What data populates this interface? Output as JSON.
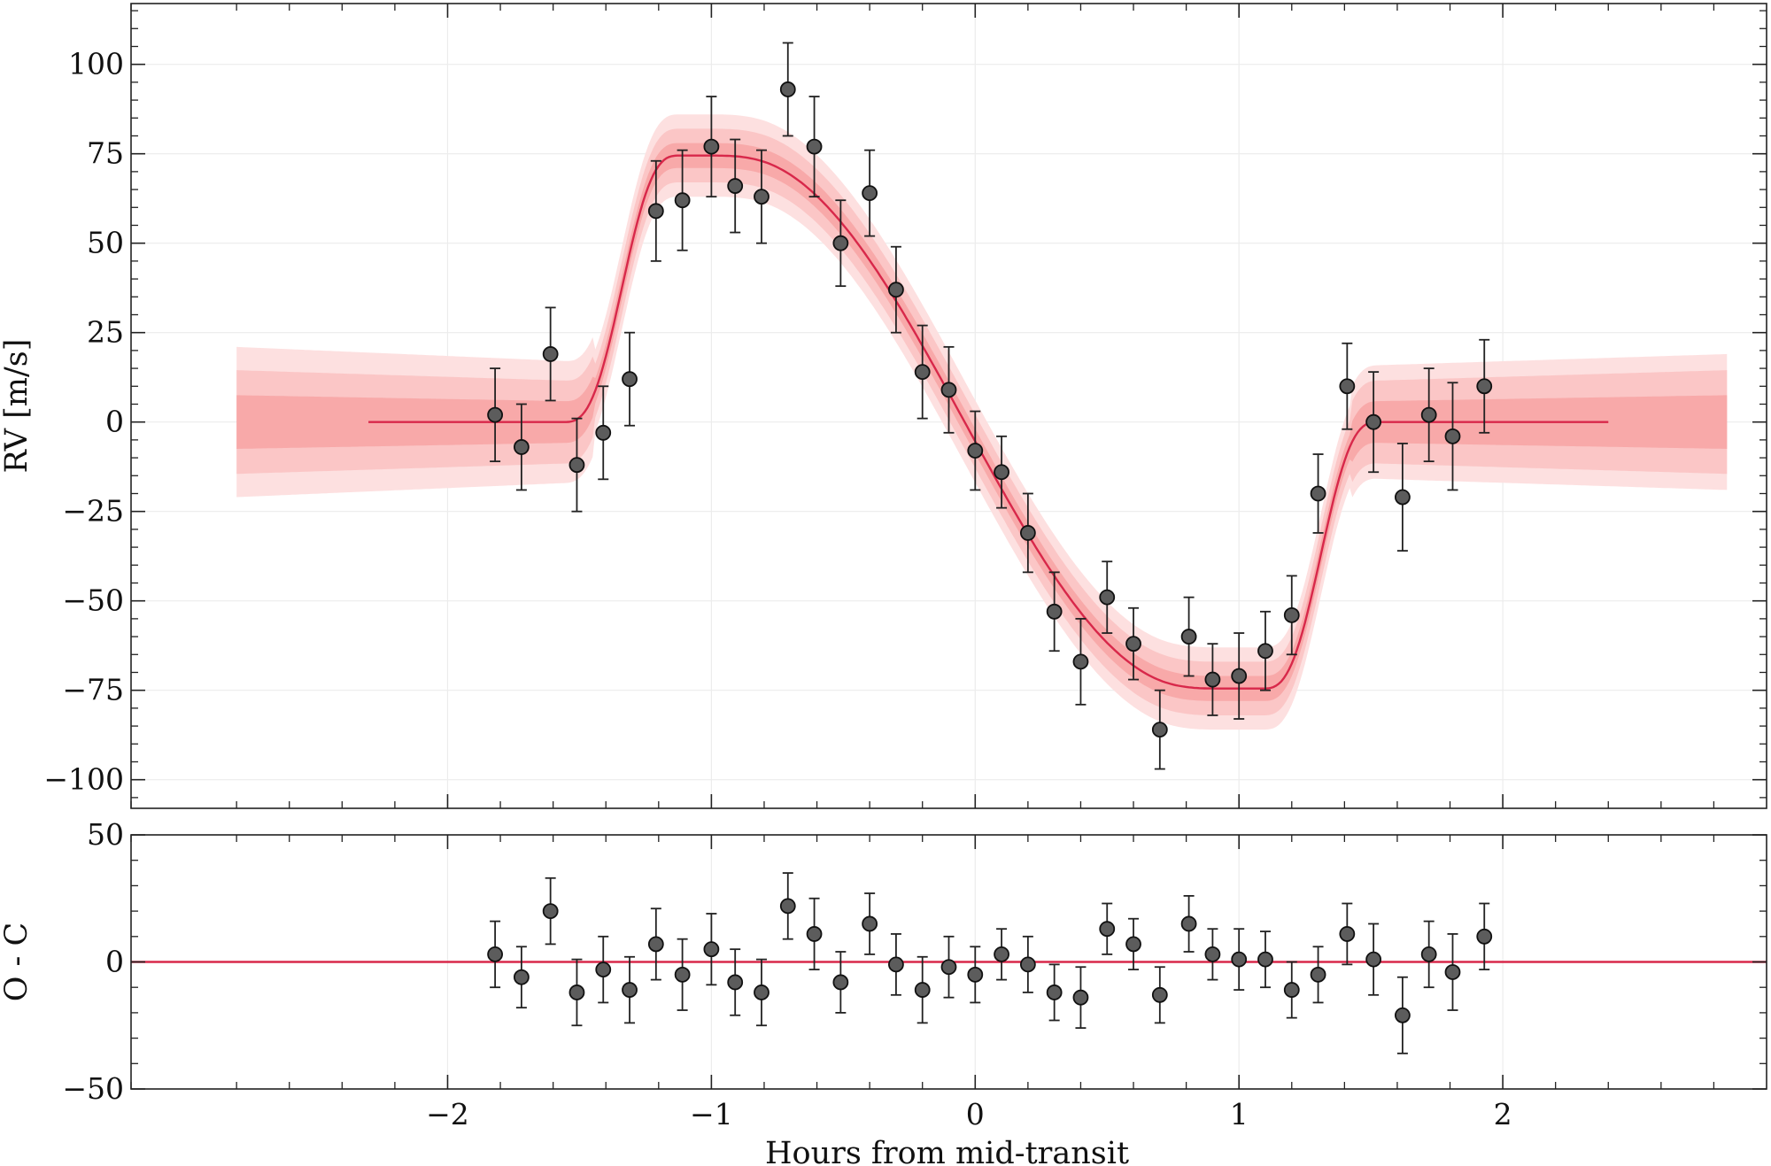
{
  "chart_data": [
    {
      "type": "scatter",
      "panel": "top",
      "xlabel": "",
      "ylabel": "RV [m/s]",
      "xlim": [
        -3.2,
        3.0
      ],
      "ylim": [
        -108,
        117
      ],
      "x_ticks": [
        -2,
        -1,
        0,
        1,
        2
      ],
      "x_tick_labels": [
        "",
        "",
        "",
        "",
        ""
      ],
      "y_ticks": [
        -100,
        -75,
        -50,
        -25,
        0,
        25,
        50,
        75,
        100
      ],
      "y_tick_labels": [
        "−100",
        "−75",
        "−50",
        "−25",
        "0",
        "25",
        "50",
        "75",
        "100"
      ],
      "grid": true,
      "legend": "none",
      "colors": {
        "model": "#d8284a",
        "band_outer": "#fde0e0",
        "band_mid": "#fbc6c6",
        "band_inner": "#f8a9a9",
        "marker": "#5c5c5c"
      },
      "model": {
        "x_range": [
          -2.3,
          2.4
        ],
        "transit_start": -1.45,
        "transit_end": 1.42,
        "peak_x": -0.9,
        "peak_y": 75,
        "trough_x": 0.82,
        "trough_y": -74,
        "band_x_range": [
          -2.8,
          2.85
        ],
        "band_halfwidths": [
          {
            "level": "inner",
            "start": 7.5,
            "middle": 3.5,
            "end": 7.5
          },
          {
            "level": "mid",
            "start": 14.5,
            "middle": 7.5,
            "end": 14.5
          },
          {
            "level": "outer",
            "start": 21,
            "middle": 11.5,
            "end": 19
          }
        ]
      },
      "series": [
        {
          "x": [
            -1.82,
            -1.72,
            -1.61,
            -1.51,
            -1.41,
            -1.31,
            -1.21,
            -1.11,
            -1.0,
            -0.91,
            -0.81,
            -0.71,
            -0.61,
            -0.51,
            -0.4,
            -0.3,
            -0.2,
            -0.1,
            0.0,
            0.1,
            0.2,
            0.3,
            0.4,
            0.5,
            0.6,
            0.7,
            0.81,
            0.9,
            1.0,
            1.1,
            1.2,
            1.3,
            1.41,
            1.51,
            1.62,
            1.72,
            1.81,
            1.93
          ],
          "y": [
            2,
            -7,
            19,
            -12,
            -3,
            12,
            59,
            62,
            77,
            66,
            63,
            93,
            77,
            50,
            64,
            37,
            14,
            9,
            -8,
            -14,
            -31,
            -53,
            -67,
            -49,
            -62,
            -86,
            -60,
            -72,
            -71,
            -64,
            -54,
            -20,
            10,
            0,
            -21,
            2,
            -4,
            10
          ],
          "yerr": [
            13,
            12,
            13,
            13,
            13,
            13,
            14,
            14,
            14,
            13,
            13,
            13,
            14,
            12,
            12,
            12,
            13,
            12,
            11,
            10,
            11,
            11,
            12,
            10,
            10,
            11,
            11,
            10,
            12,
            11,
            11,
            11,
            12,
            14,
            15,
            13,
            15,
            13
          ]
        }
      ]
    },
    {
      "type": "scatter",
      "panel": "bottom",
      "xlabel": "Hours from mid-transit",
      "ylabel": "O - C",
      "xlim": [
        -3.2,
        3.0
      ],
      "ylim": [
        -50,
        50
      ],
      "x_ticks": [
        -2,
        -1,
        0,
        1,
        2
      ],
      "x_tick_labels": [
        "−2",
        "−1",
        "0",
        "1",
        "2"
      ],
      "y_ticks": [
        -50,
        0,
        50
      ],
      "y_tick_labels": [
        "−50",
        "0",
        "50"
      ],
      "grid": true,
      "legend": "none",
      "reference_line_y": 0,
      "series": [
        {
          "x": [
            -1.82,
            -1.72,
            -1.61,
            -1.51,
            -1.41,
            -1.31,
            -1.21,
            -1.11,
            -1.0,
            -0.91,
            -0.81,
            -0.71,
            -0.61,
            -0.51,
            -0.4,
            -0.3,
            -0.2,
            -0.1,
            0.0,
            0.1,
            0.2,
            0.3,
            0.4,
            0.5,
            0.6,
            0.7,
            0.81,
            0.9,
            1.0,
            1.1,
            1.2,
            1.3,
            1.41,
            1.51,
            1.62,
            1.72,
            1.81,
            1.93
          ],
          "y": [
            3,
            -6,
            20,
            -12,
            -3,
            -11,
            7,
            -5,
            5,
            -8,
            -12,
            22,
            11,
            -8,
            15,
            -1,
            -11,
            -2,
            -5,
            3,
            -1,
            -12,
            -14,
            13,
            7,
            -13,
            15,
            3,
            1,
            1,
            -11,
            -5,
            11,
            1,
            -21,
            3,
            -4,
            10
          ],
          "yerr": [
            13,
            12,
            13,
            13,
            13,
            13,
            14,
            14,
            14,
            13,
            13,
            13,
            14,
            12,
            12,
            12,
            13,
            12,
            11,
            10,
            11,
            11,
            12,
            10,
            10,
            11,
            11,
            10,
            12,
            11,
            11,
            11,
            12,
            14,
            15,
            13,
            15,
            13
          ]
        }
      ]
    }
  ]
}
